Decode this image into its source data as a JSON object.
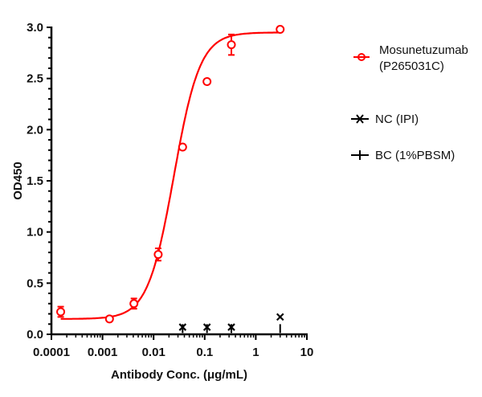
{
  "chart_data": {
    "type": "scatter",
    "title": "",
    "xlabel": "Antibody Conc. (μg/mL)",
    "ylabel": "OD450",
    "xscale": "log",
    "xlim": [
      0.0001,
      10
    ],
    "ylim": [
      0,
      3.0
    ],
    "x_ticks": [
      "0.0001",
      "0.001",
      "0.01",
      "0.1",
      "1",
      "10"
    ],
    "y_ticks": [
      "0.0",
      "0.5",
      "1.0",
      "1.5",
      "2.0",
      "2.5",
      "3.0"
    ],
    "grid": false,
    "legend_position": "right",
    "series": [
      {
        "name": "Mosunetuzumab (P265031C)",
        "legend_line1": "Mosunetuzumab",
        "legend_line2": "(P265031C)",
        "color": "#ff0000",
        "marker": "open-circle",
        "fit": "4PL sigmoid",
        "x": [
          0.000152,
          0.00137,
          0.00412,
          0.0123,
          0.037,
          0.111,
          0.333,
          3.0
        ],
        "y": [
          0.22,
          0.15,
          0.3,
          0.78,
          1.83,
          2.47,
          2.83,
          2.98
        ],
        "error": [
          0.05,
          0.02,
          0.05,
          0.06,
          0.0,
          0.0,
          0.1,
          0.0
        ]
      },
      {
        "name": "NC (IPI)",
        "color": "#000000",
        "marker": "x",
        "x": [
          0.037,
          0.111,
          0.333,
          3.0
        ],
        "y": [
          0.07,
          0.07,
          0.07,
          0.17
        ]
      },
      {
        "name": "BC (1%PBSM)",
        "color": "#000000",
        "marker": "plus",
        "x": [
          0.037,
          0.111,
          0.333,
          3.0
        ],
        "y": [
          0.06,
          0.06,
          0.06,
          0.06
        ]
      }
    ],
    "fit_params": {
      "bottom": 0.15,
      "top": 2.95,
      "ec50": 0.025,
      "hill": 1.7
    }
  }
}
